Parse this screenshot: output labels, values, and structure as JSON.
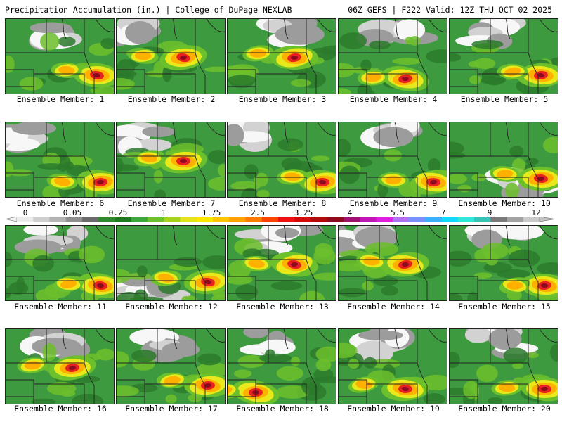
{
  "header": {
    "title": "Precipitation Accumulation (in.) | College of DuPage NEXLAB",
    "run_info": "06Z GEFS | F222 Valid: 12Z THU OCT 02 2025"
  },
  "panels": [
    {
      "label": "Ensemble Member: 1",
      "max_zone": "east",
      "dry_zone": "north"
    },
    {
      "label": "Ensemble Member: 2",
      "max_zone": "center",
      "dry_zone": "northwest"
    },
    {
      "label": "Ensemble Member: 3",
      "max_zone": "center",
      "dry_zone": "north"
    },
    {
      "label": "Ensemble Member: 4",
      "max_zone": "south",
      "dry_zone": "north"
    },
    {
      "label": "Ensemble Member: 5",
      "max_zone": "east",
      "dry_zone": "north"
    },
    {
      "label": "Ensemble Member: 6",
      "max_zone": "southeast",
      "dry_zone": "northwest"
    },
    {
      "label": "Ensemble Member: 7",
      "max_zone": "center",
      "dry_zone": "northwest"
    },
    {
      "label": "Ensemble Member: 8",
      "max_zone": "southeast",
      "dry_zone": "northwest"
    },
    {
      "label": "Ensemble Member: 9",
      "max_zone": "southeast",
      "dry_zone": "north"
    },
    {
      "label": "Ensemble Member: 10",
      "max_zone": "east",
      "dry_zone": "south"
    },
    {
      "label": "Ensemble Member: 11",
      "max_zone": "southeast",
      "dry_zone": "north"
    },
    {
      "label": "Ensemble Member: 12",
      "max_zone": "east",
      "dry_zone": "southwest"
    },
    {
      "label": "Ensemble Member: 13",
      "max_zone": "center",
      "dry_zone": "north"
    },
    {
      "label": "Ensemble Member: 14",
      "max_zone": "center",
      "dry_zone": "northwest"
    },
    {
      "label": "Ensemble Member: 15",
      "max_zone": "southeast",
      "dry_zone": "north"
    },
    {
      "label": "Ensemble Member: 16",
      "max_zone": "center",
      "dry_zone": "north"
    },
    {
      "label": "Ensemble Member: 17",
      "max_zone": "east",
      "dry_zone": "north"
    },
    {
      "label": "Ensemble Member: 18",
      "max_zone": "southwest",
      "dry_zone": "north"
    },
    {
      "label": "Ensemble Member: 19",
      "max_zone": "south",
      "dry_zone": "north"
    },
    {
      "label": "Ensemble Member: 20",
      "max_zone": "southeast",
      "dry_zone": "north"
    }
  ],
  "colorbar": {
    "labels": [
      "0",
      "0.05",
      "0.25",
      "1",
      "1.75",
      "2.5",
      "3.25",
      "4",
      "5.5",
      "7",
      "9",
      "12"
    ],
    "colors": [
      "#ececec",
      "#cfcfcf",
      "#b3b3b3",
      "#8f8f8f",
      "#6b6b6b",
      "#2f8a2f",
      "#1e7a1e",
      "#3aa83a",
      "#6cc02c",
      "#a6d21e",
      "#e3e31a",
      "#ffe600",
      "#ffc400",
      "#ffa200",
      "#ff7a00",
      "#ff4400",
      "#f01010",
      "#d40a0a",
      "#b00a0a",
      "#8e0a1e",
      "#a0106e",
      "#c016b8",
      "#e01ee0",
      "#b070f0",
      "#7a90ff",
      "#3ab0ff",
      "#10d8ff",
      "#30e8d8",
      "#38c4b4",
      "#7a7a7a",
      "#a2a2a2",
      "#cacaca"
    ]
  },
  "palette": {
    "dry_white": "#f7f7f7",
    "dry_light": "#d2d2d2",
    "dry_mid": "#9c9c9c",
    "green_dark": "#2c7a2c",
    "green": "#3e9a3e",
    "green_light": "#6cc02c",
    "yellow": "#e8e81a",
    "orange": "#ffb000",
    "red": "#e82020",
    "dark_red": "#8e0a1e"
  }
}
